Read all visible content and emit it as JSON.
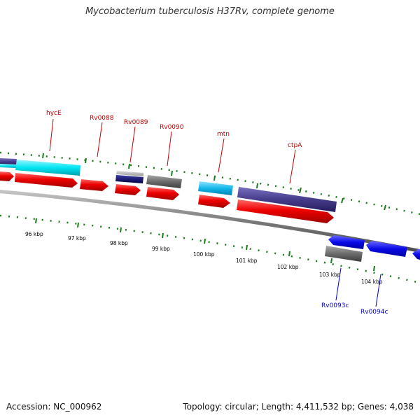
{
  "title": "Mycobacterium tuberculosis H37Rv, complete genome",
  "footer": {
    "accession": "Accession: NC_000962",
    "summary": "Topology: circular; Length: 4,411,532 bp; Genes: 4,038"
  },
  "colors": {
    "cds_red": "#ee0000",
    "gene_cyan": "#1ab8e6",
    "gene_purple": "#4a3f8c",
    "gene_gray": "#777777",
    "gene_blue": "#0a0ae8",
    "tick_green": "#1a7a1a",
    "forward_label": "#c00000",
    "reverse_label": "#0000c8"
  },
  "scale_ticks": [
    "96 kbp",
    "97 kbp",
    "98 kbp",
    "99 kbp",
    "100 kbp",
    "101 kbp",
    "102 kbp",
    "103 kbp",
    "104 kbp"
  ],
  "gene_labels": [
    {
      "text": "hycE",
      "strand": "forward"
    },
    {
      "text": "Rv0088",
      "strand": "forward"
    },
    {
      "text": "Rv0089",
      "strand": "forward"
    },
    {
      "text": "Rv0090",
      "strand": "forward"
    },
    {
      "text": "mtn",
      "strand": "forward"
    },
    {
      "text": "ctpA",
      "strand": "forward"
    },
    {
      "text": "Rv0093c",
      "strand": "reverse"
    },
    {
      "text": "Rv0094c",
      "strand": "reverse"
    }
  ]
}
